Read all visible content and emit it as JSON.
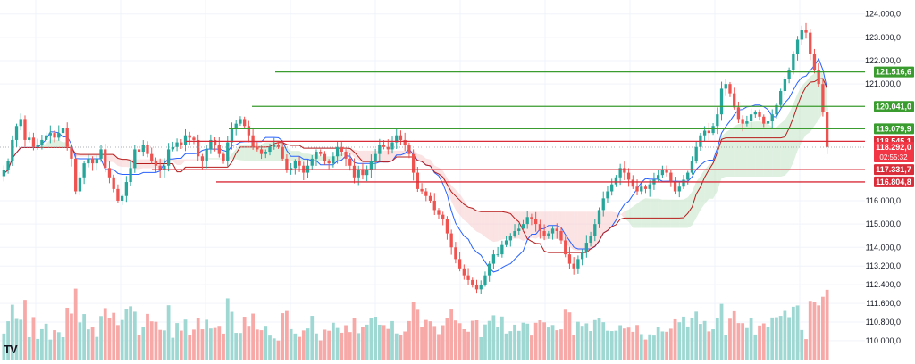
{
  "chart_data": {
    "type": "candlestick",
    "title": "",
    "ylim": [
      109500,
      124600
    ],
    "y_ticks": [
      {
        "value": 124000,
        "label": "124.000,0"
      },
      {
        "value": 123000,
        "label": "123.000,0"
      },
      {
        "value": 122000,
        "label": "122.000,0"
      },
      {
        "value": 121000,
        "label": "121.000,0"
      },
      {
        "value": 116000,
        "label": "116.000,0"
      },
      {
        "value": 115000,
        "label": "115.000,0"
      },
      {
        "value": 114000,
        "label": "114.000,0"
      },
      {
        "value": 113200,
        "label": "113.200,0"
      },
      {
        "value": 112400,
        "label": "112.400,0"
      },
      {
        "value": 111600,
        "label": "111.600,0"
      },
      {
        "value": 110800,
        "label": "110.800,0"
      },
      {
        "value": 110000,
        "label": "110.000,0"
      }
    ],
    "closes": [
      117300,
      117700,
      118600,
      119200,
      119500,
      118600,
      118700,
      118300,
      118400,
      118600,
      118800,
      118900,
      118700,
      118900,
      119100,
      118300,
      117800,
      116400,
      117000,
      117600,
      117800,
      117600,
      117800,
      118200,
      117400,
      117000,
      116500,
      116000,
      116200,
      116800,
      117400,
      118200,
      118100,
      118400,
      118000,
      117700,
      117500,
      117300,
      117500,
      118200,
      118300,
      118500,
      118400,
      118800,
      118700,
      118600,
      117900,
      117700,
      118200,
      118600,
      118400,
      118000,
      117700,
      118500,
      119100,
      119300,
      119500,
      119200,
      118800,
      118300,
      118200,
      118000,
      118100,
      118300,
      118400,
      118300,
      117800,
      117300,
      117400,
      117700,
      117500,
      117200,
      117500,
      117800,
      118100,
      118000,
      117700,
      117600,
      117900,
      118300,
      118100,
      117800,
      117500,
      117000,
      117300,
      117100,
      117300,
      117700,
      118000,
      118400,
      118300,
      118200,
      118500,
      118800,
      118600,
      118400,
      118000,
      117200,
      116500,
      116400,
      116200,
      116000,
      115600,
      115400,
      115200,
      114600,
      114000,
      113500,
      113100,
      112800,
      112600,
      112400,
      112200,
      112400,
      112800,
      113300,
      113700,
      113700,
      114100,
      114300,
      114500,
      114700,
      114800,
      115000,
      115300,
      115200,
      115000,
      114700,
      114500,
      114600,
      114800,
      114700,
      114300,
      113700,
      113300,
      113100,
      113500,
      113800,
      114200,
      114500,
      115000,
      115600,
      116100,
      116400,
      116700,
      117000,
      117400,
      117200,
      116900,
      116600,
      116400,
      116600,
      116500,
      116700,
      116900,
      117100,
      117300,
      117200,
      116800,
      116400,
      116600,
      116900,
      117200,
      117700,
      118300,
      118800,
      119000,
      118900,
      119200,
      119700,
      120800,
      121000,
      120600,
      120000,
      119500,
      119300,
      119400,
      119700,
      119800,
      119600,
      119300,
      119400,
      119700,
      120100,
      120700,
      121200,
      121600,
      122300,
      122900,
      123300,
      123200,
      122300,
      121600,
      121000,
      119800,
      118300
    ],
    "reference_levels": [
      {
        "value": 121516.6,
        "label": "121.516,6",
        "color": "#3a9c2e"
      },
      {
        "value": 120041.0,
        "label": "120.041,0",
        "color": "#3a9c2e"
      },
      {
        "value": 119079.9,
        "label": "119.079,9",
        "color": "#3a9c2e"
      },
      {
        "value": 118545.1,
        "label": "118.545,1",
        "color": "#d92d3a"
      },
      {
        "value": 117331.7,
        "label": "117.331,7",
        "color": "#d92d3a"
      },
      {
        "value": 116804.8,
        "label": "116.804,8",
        "color": "#d92d3a"
      }
    ],
    "last_price": {
      "value": 118292.0,
      "label": "118.292,0",
      "countdown": "02:55:32",
      "color": "#f23645"
    },
    "colors": {
      "up": "#26a69a",
      "down": "#ef5350",
      "cloud_up": "#c8e6c9",
      "cloud_down": "#f8cfd0",
      "tenkan": "#2962ff",
      "kijun": "#b71c1c",
      "grid": "#f0f3fa"
    }
  },
  "branding": {
    "logo_text": "TV"
  }
}
